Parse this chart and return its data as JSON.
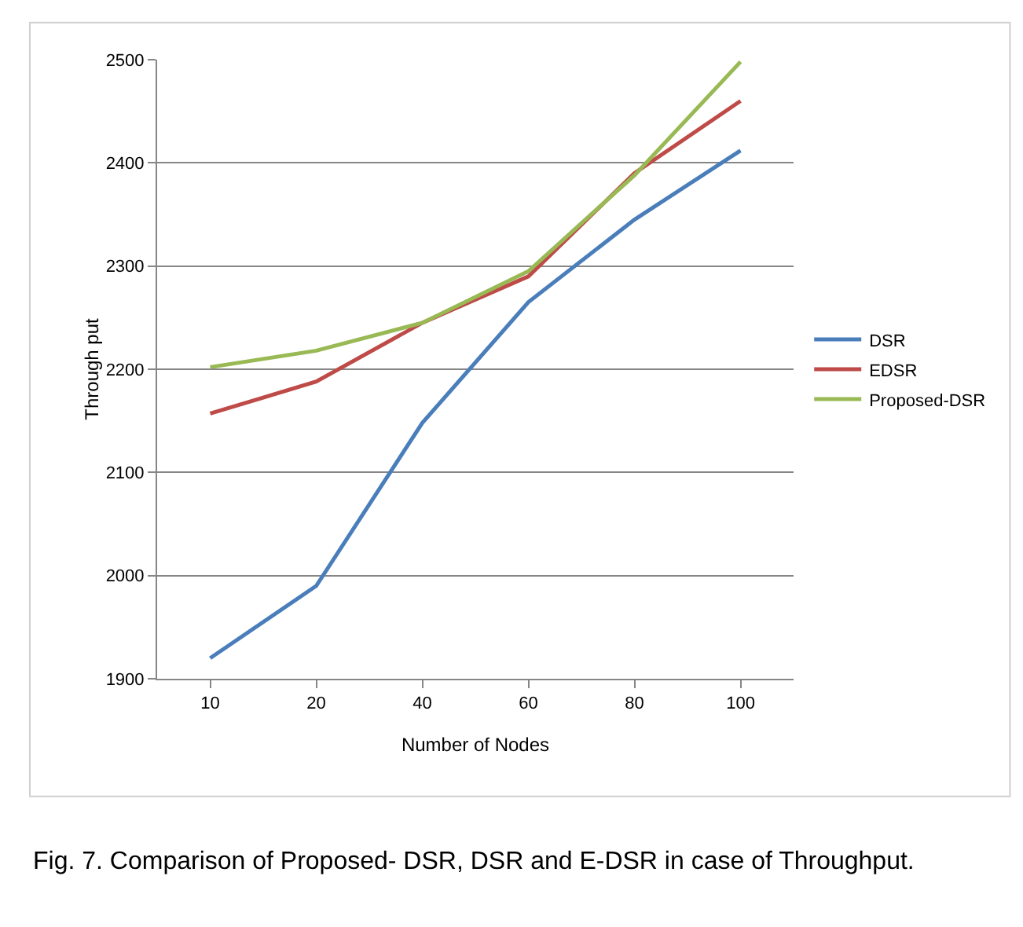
{
  "chart_data": {
    "type": "line",
    "xlabel": "Number of Nodes",
    "ylabel": "Through put",
    "categories": [
      "10",
      "20",
      "40",
      "60",
      "80",
      "100"
    ],
    "series": [
      {
        "name": "DSR",
        "color": "#4a7ebb",
        "values": [
          1920,
          1990,
          2148,
          2265,
          2345,
          2412
        ]
      },
      {
        "name": "EDSR",
        "color": "#be4b48",
        "values": [
          2157,
          2188,
          2245,
          2290,
          2390,
          2460
        ]
      },
      {
        "name": "Proposed-DSR",
        "color": "#98b954",
        "values": [
          2202,
          2218,
          2245,
          2295,
          2388,
          2498
        ]
      }
    ],
    "ylim": [
      1900,
      2500
    ],
    "yticks": [
      1900,
      2000,
      2100,
      2200,
      2300,
      2400,
      2500
    ],
    "grid": "y",
    "legend": "right",
    "marker": "none",
    "line_style": "solid",
    "annotations": [
      "Fig. 7. Comparison of Proposed- DSR, DSR and E-DSR in case of Throughput."
    ]
  }
}
